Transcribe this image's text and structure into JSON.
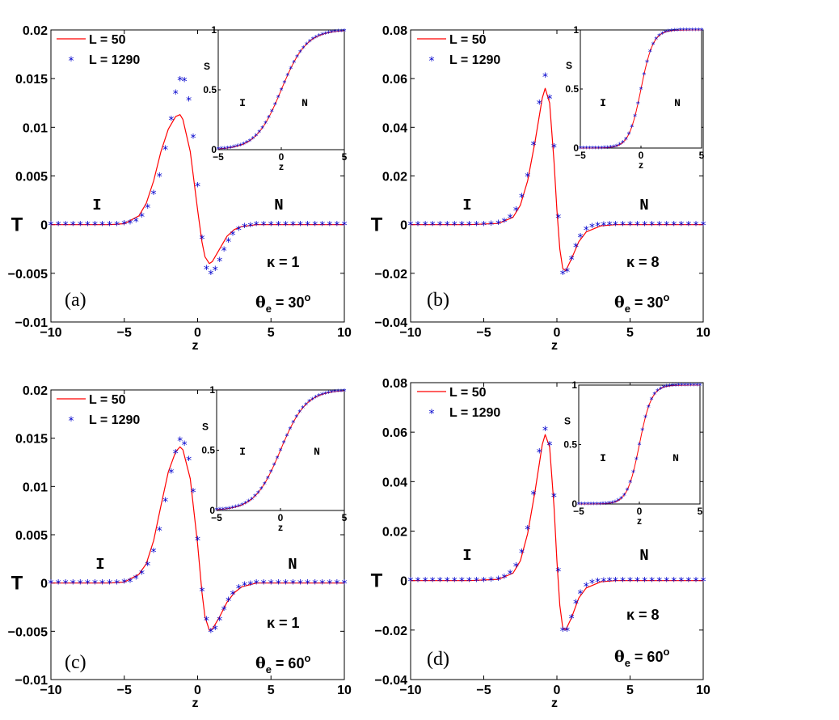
{
  "chart_data": [
    {
      "type": "line",
      "panel_label": "(a)",
      "xlabel": "z",
      "ylabel": "T",
      "xlim": [
        -10,
        10
      ],
      "ylim": [
        -0.01,
        0.02
      ],
      "xticks": [
        "−10",
        "−5",
        "0",
        "5",
        "10"
      ],
      "yticks": [
        "−0.01",
        "−0.005",
        "0",
        "0.005",
        "0.01",
        "0.015",
        "0.02"
      ],
      "region_left": "I",
      "region_right": "N",
      "kappa_label": "κ = 1",
      "theta_prefix": "θ",
      "theta_sub": "e",
      "theta_value": " = 30",
      "theta_sup": "o",
      "series": [
        {
          "name": "L = 50",
          "style": "line",
          "color": "#ff0000",
          "x": [
            -10,
            -8,
            -6,
            -5,
            -4,
            -3.5,
            -3,
            -2.5,
            -2,
            -1.5,
            -1.2,
            -1,
            -0.5,
            0,
            0.3,
            0.5,
            0.8,
            1,
            1.5,
            2,
            2.5,
            3,
            4,
            5,
            6,
            8,
            10
          ],
          "y": [
            0,
            0,
            0,
            0.0001,
            0.0009,
            0.0022,
            0.0045,
            0.0075,
            0.0098,
            0.0111,
            0.0113,
            0.0108,
            0.0075,
            0.0015,
            -0.0018,
            -0.0033,
            -0.004,
            -0.0038,
            -0.0025,
            -0.0012,
            -0.0005,
            -0.0002,
            0,
            0,
            0,
            0,
            0
          ]
        },
        {
          "name": "L = 1290",
          "style": "marker",
          "color": "#0000cc",
          "x": [
            -10,
            -9.5,
            -9,
            -8.5,
            -8,
            -7.5,
            -7,
            -6.5,
            -6,
            -5.5,
            -5,
            -4.6,
            -4.2,
            -3.8,
            -3.4,
            -3,
            -2.6,
            -2.2,
            -1.8,
            -1.5,
            -1.2,
            -0.9,
            -0.6,
            -0.3,
            0,
            0.3,
            0.6,
            0.9,
            1.2,
            1.5,
            1.8,
            2.1,
            2.4,
            2.8,
            3.2,
            3.6,
            4,
            4.5,
            5,
            5.5,
            6,
            6.5,
            7,
            7.5,
            8,
            8.5,
            9,
            9.5,
            10
          ],
          "y": [
            0,
            0,
            0,
            0,
            0,
            0,
            0,
            0,
            0,
            0,
            0.0001,
            0.0002,
            0.0004,
            0.0009,
            0.0018,
            0.0032,
            0.005,
            0.0078,
            0.0108,
            0.0135,
            0.0149,
            0.0148,
            0.0128,
            0.009,
            0.004,
            -0.0014,
            -0.0045,
            -0.005,
            -0.0046,
            -0.0037,
            -0.0026,
            -0.0017,
            -0.001,
            -0.0005,
            -0.0002,
            -0.0001,
            0,
            0,
            0,
            0,
            0,
            0,
            0,
            0,
            0,
            0,
            0,
            0,
            0
          ]
        }
      ],
      "inset": {
        "ylabel": "S",
        "xlabel": "z",
        "xlim": [
          -5,
          5
        ],
        "ylim": [
          0,
          1
        ],
        "xticks": [
          "−5",
          "0",
          "5"
        ],
        "yticks": [
          "0",
          "0.5",
          "1"
        ],
        "region_left": "I",
        "region_right": "N",
        "width": 1.0
      }
    },
    {
      "type": "line",
      "panel_label": "(b)",
      "xlabel": "z",
      "ylabel": "T",
      "xlim": [
        -10,
        10
      ],
      "ylim": [
        -0.04,
        0.08
      ],
      "xticks": [
        "−10",
        "−5",
        "0",
        "5",
        "10"
      ],
      "yticks": [
        "−0.04",
        "−0.02",
        "0",
        "0.02",
        "0.04",
        "0.06",
        "0.08"
      ],
      "region_left": "I",
      "region_right": "N",
      "kappa_label": "κ = 8",
      "theta_prefix": "θ",
      "theta_sub": "e",
      "theta_value": " = 30",
      "theta_sup": "o",
      "series": [
        {
          "name": "L = 50",
          "style": "line",
          "color": "#ff0000",
          "x": [
            -10,
            -6,
            -4,
            -3,
            -2.5,
            -2,
            -1.5,
            -1,
            -0.8,
            -0.5,
            -0.2,
            0,
            0.2,
            0.4,
            0.6,
            1,
            1.5,
            2,
            3,
            4,
            6,
            10
          ],
          "y": [
            0,
            0,
            0.0005,
            0.003,
            0.008,
            0.018,
            0.034,
            0.052,
            0.056,
            0.05,
            0.026,
            0.006,
            -0.01,
            -0.018,
            -0.019,
            -0.014,
            -0.007,
            -0.003,
            -0.0005,
            0,
            0,
            0
          ]
        },
        {
          "name": "L = 1290",
          "style": "marker",
          "color": "#0000cc",
          "x": [
            -10,
            -9.5,
            -9,
            -8.5,
            -8,
            -7.5,
            -7,
            -6.5,
            -6,
            -5.5,
            -5,
            -4.5,
            -4,
            -3.6,
            -3.2,
            -2.8,
            -2.4,
            -2,
            -1.6,
            -1.2,
            -0.8,
            -0.5,
            -0.2,
            0.1,
            0.4,
            0.7,
            1,
            1.3,
            1.6,
            2,
            2.4,
            2.8,
            3.2,
            3.6,
            4,
            4.5,
            5,
            5.5,
            6,
            6.5,
            7,
            7.5,
            8,
            8.5,
            9,
            9.5,
            10
          ],
          "y": [
            0,
            0,
            0,
            0,
            0,
            0,
            0,
            0,
            0,
            0,
            0,
            0.0002,
            0.0006,
            0.0014,
            0.003,
            0.006,
            0.0115,
            0.02,
            0.033,
            0.05,
            0.061,
            0.052,
            0.032,
            0.003,
            -0.02,
            -0.019,
            -0.014,
            -0.009,
            -0.005,
            -0.002,
            -0.0008,
            -0.0003,
            -0.0001,
            0,
            0,
            0,
            0,
            0,
            0,
            0,
            0,
            0,
            0,
            0,
            0,
            0,
            0
          ]
        }
      ],
      "inset": {
        "ylabel": "S",
        "xlabel": "z",
        "xlim": [
          -5,
          5
        ],
        "ylim": [
          0,
          1
        ],
        "xticks": [
          "−5",
          "0",
          "5"
        ],
        "yticks": [
          "0",
          "0.5",
          "1"
        ],
        "region_left": "I",
        "region_right": "N",
        "width": 0.5
      }
    },
    {
      "type": "line",
      "panel_label": "(c)",
      "xlabel": "z",
      "ylabel": "T",
      "xlim": [
        -10,
        10
      ],
      "ylim": [
        -0.01,
        0.02
      ],
      "xticks": [
        "−10",
        "−5",
        "0",
        "5",
        "10"
      ],
      "yticks": [
        "−0.01",
        "−0.005",
        "0",
        "0.005",
        "0.01",
        "0.015",
        "0.02"
      ],
      "region_left": "I",
      "region_right": "N",
      "kappa_label": "κ = 1",
      "theta_prefix": "θ",
      "theta_sub": "e",
      "theta_value": " = 60",
      "theta_sup": "o",
      "series": [
        {
          "name": "L = 50",
          "style": "line",
          "color": "#ff0000",
          "x": [
            -10,
            -8,
            -6,
            -5,
            -4,
            -3.5,
            -3,
            -2.5,
            -2,
            -1.5,
            -1.2,
            -1,
            -0.5,
            0,
            0.3,
            0.5,
            0.8,
            1,
            1.5,
            2,
            2.5,
            3,
            4,
            5,
            6,
            8,
            10
          ],
          "y": [
            0,
            0,
            0,
            0.0001,
            0.0009,
            0.002,
            0.0044,
            0.008,
            0.0115,
            0.0136,
            0.0141,
            0.0138,
            0.0108,
            0.004,
            -0.001,
            -0.0035,
            -0.0049,
            -0.0048,
            -0.0035,
            -0.002,
            -0.001,
            -0.0004,
            0,
            0,
            0,
            0,
            0
          ]
        },
        {
          "name": "L = 1290",
          "style": "marker",
          "color": "#0000cc",
          "x": [
            -10,
            -9.5,
            -9,
            -8.5,
            -8,
            -7.5,
            -7,
            -6.5,
            -6,
            -5.5,
            -5,
            -4.6,
            -4.2,
            -3.8,
            -3.4,
            -3,
            -2.6,
            -2.2,
            -1.8,
            -1.5,
            -1.2,
            -0.9,
            -0.6,
            -0.3,
            0,
            0.3,
            0.6,
            0.9,
            1.2,
            1.5,
            1.8,
            2.1,
            2.4,
            2.8,
            3.2,
            3.6,
            4,
            4.5,
            5,
            5.5,
            6,
            6.5,
            7,
            7.5,
            8,
            8.5,
            9,
            9.5,
            10
          ],
          "y": [
            0,
            0,
            0,
            0,
            0,
            0,
            0,
            0,
            0,
            0,
            0.0001,
            0.0002,
            0.0005,
            0.001,
            0.0019,
            0.0033,
            0.0055,
            0.0085,
            0.0115,
            0.0135,
            0.0148,
            0.0144,
            0.0128,
            0.0095,
            0.0045,
            -0.0008,
            -0.0038,
            -0.005,
            -0.0047,
            -0.0038,
            -0.0027,
            -0.0018,
            -0.0011,
            -0.0005,
            -0.0002,
            -0.0001,
            0,
            0,
            0,
            0,
            0,
            0,
            0,
            0,
            0,
            0,
            0,
            0,
            0
          ]
        }
      ],
      "inset": {
        "ylabel": "S",
        "xlabel": "z",
        "xlim": [
          -5,
          5
        ],
        "ylim": [
          0,
          1
        ],
        "xticks": [
          "−5",
          "0",
          "5"
        ],
        "yticks": [
          "0",
          "0.5",
          "1"
        ],
        "region_left": "I",
        "region_right": "N",
        "width": 1.0
      }
    },
    {
      "type": "line",
      "panel_label": "(d)",
      "xlabel": "z",
      "ylabel": "T",
      "xlim": [
        -10,
        10
      ],
      "ylim": [
        -0.04,
        0.08
      ],
      "xticks": [
        "−10",
        "−5",
        "0",
        "5",
        "10"
      ],
      "yticks": [
        "−0.04",
        "−0.02",
        "0",
        "0.02",
        "0.04",
        "0.06",
        "0.08"
      ],
      "region_left": "I",
      "region_right": "N",
      "kappa_label": "κ = 8",
      "theta_prefix": "θ",
      "theta_sub": "e",
      "theta_value": " = 60",
      "theta_sup": "o",
      "series": [
        {
          "name": "L = 50",
          "style": "line",
          "color": "#ff0000",
          "x": [
            -10,
            -6,
            -4,
            -3,
            -2.5,
            -2,
            -1.5,
            -1,
            -0.8,
            -0.5,
            -0.2,
            0,
            0.2,
            0.4,
            0.6,
            1,
            1.5,
            2,
            3,
            4,
            6,
            10
          ],
          "y": [
            0,
            0,
            0.0005,
            0.003,
            0.008,
            0.019,
            0.036,
            0.055,
            0.059,
            0.054,
            0.03,
            0.008,
            -0.01,
            -0.019,
            -0.02,
            -0.015,
            -0.007,
            -0.003,
            -0.0005,
            0,
            0,
            0
          ]
        },
        {
          "name": "L = 1290",
          "style": "marker",
          "color": "#0000cc",
          "x": [
            -10,
            -9.5,
            -9,
            -8.5,
            -8,
            -7.5,
            -7,
            -6.5,
            -6,
            -5.5,
            -5,
            -4.5,
            -4,
            -3.6,
            -3.2,
            -2.8,
            -2.4,
            -2,
            -1.6,
            -1.2,
            -0.8,
            -0.5,
            -0.2,
            0.1,
            0.4,
            0.7,
            1,
            1.3,
            1.6,
            2,
            2.4,
            2.8,
            3.2,
            3.6,
            4,
            4.5,
            5,
            5.5,
            6,
            6.5,
            7,
            7.5,
            8,
            8.5,
            9,
            9.5,
            10
          ],
          "y": [
            0,
            0,
            0,
            0,
            0,
            0,
            0,
            0,
            0,
            0,
            0,
            0.0002,
            0.0006,
            0.0014,
            0.003,
            0.006,
            0.0115,
            0.021,
            0.035,
            0.052,
            0.061,
            0.055,
            0.034,
            0.004,
            -0.02,
            -0.02,
            -0.015,
            -0.009,
            -0.005,
            -0.002,
            -0.0008,
            -0.0003,
            -0.0001,
            0,
            0,
            0,
            0,
            0,
            0,
            0,
            0,
            0,
            0,
            0,
            0,
            0,
            0
          ]
        }
      ],
      "inset": {
        "ylabel": "S",
        "xlabel": "z",
        "xlim": [
          -5,
          5
        ],
        "ylim": [
          0,
          1
        ],
        "xticks": [
          "−5",
          "0",
          "5"
        ],
        "yticks": [
          "0",
          "0.5",
          "1"
        ],
        "region_left": "I",
        "region_right": "N",
        "width": 0.5
      }
    }
  ]
}
